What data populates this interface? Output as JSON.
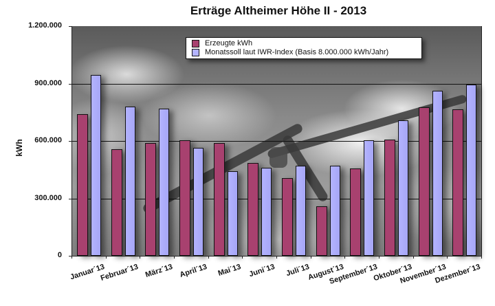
{
  "chart_data": {
    "type": "bar",
    "title": "Erträge Altheimer Höhe II - 2013",
    "xlabel": "",
    "ylabel": "kWh",
    "ylim": [
      0,
      1200000
    ],
    "yticks": [
      "0",
      "300.000",
      "600.000",
      "900.000",
      "1.200.000"
    ],
    "grid": true,
    "legend_position": "top-center inside",
    "categories": [
      "Januar´13",
      "Februar´13",
      "März´13",
      "April´13",
      "Mai´13",
      "Juni´13",
      "Juli´13",
      "August´13",
      "September´13",
      "Oktober´13",
      "November´13",
      "Dezember´13"
    ],
    "series": [
      {
        "name": "Erzeugte kWh",
        "color": "#a8416f",
        "values": [
          740000,
          557000,
          590000,
          604000,
          589000,
          484000,
          405000,
          257000,
          455000,
          607000,
          777000,
          766000
        ]
      },
      {
        "name": "Monatssoll laut IWR-Index (Basis 8.000.000 kWh/Jahr)",
        "color": "#b3b3ff",
        "values": [
          945000,
          780000,
          769000,
          564000,
          441000,
          459000,
          470000,
          470000,
          604000,
          708000,
          864000,
          893000
        ]
      }
    ]
  },
  "legend": {
    "item0": "Erzeugte kWh",
    "item1": "Monatssoll laut IWR-Index (Basis 8.000.000 kWh/Jahr)"
  }
}
